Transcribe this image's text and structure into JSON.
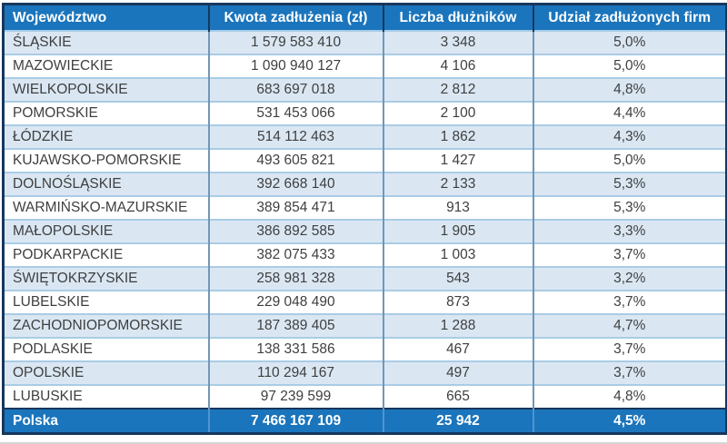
{
  "colors": {
    "header_bg": "#1B75BC",
    "header_text": "#FFFFFF",
    "footer_bg": "#1B75BC",
    "outer_border": "#17375D",
    "row_alt_bg": "#DAE7F3",
    "row_white_bg": "#FFFFFF",
    "grid_horizontal": "#A9CCE5",
    "grid_vertical": "#7396B5",
    "footer_divider": "#4E95D1",
    "body_text": "#3F3F3F"
  },
  "chart_data": {
    "type": "table",
    "columns": [
      "Województwo",
      "Kwota zadłużenia (zł)",
      "Liczba dłużników",
      "Udział zadłużonych firm"
    ],
    "rows": [
      [
        "ŚLĄSKIE",
        "1 579 583 410",
        "3 348",
        "5,0%"
      ],
      [
        "MAZOWIECKIE",
        "1 090 940 127",
        "4 106",
        "5,0%"
      ],
      [
        "WIELKOPOLSKIE",
        "683 697 018",
        "2 812",
        "4,8%"
      ],
      [
        "POMORSKIE",
        "531 453 066",
        "2 100",
        "4,4%"
      ],
      [
        "ŁÓDZKIE",
        "514 112 463",
        "1 862",
        "4,3%"
      ],
      [
        "KUJAWSKO-POMORSKIE",
        "493 605 821",
        "1 427",
        "5,0%"
      ],
      [
        "DOLNOŚLĄSKIE",
        "392 668 140",
        "2 133",
        "5,3%"
      ],
      [
        "WARMIŃSKO-MAZURSKIE",
        "389 854 471",
        "913",
        "5,3%"
      ],
      [
        "MAŁOPOLSKIE",
        "386 892 585",
        "1 905",
        "3,3%"
      ],
      [
        "PODKARPACKIE",
        "382 075 433",
        "1 003",
        "3,7%"
      ],
      [
        "ŚWIĘTOKRZYSKIE",
        "258 981 328",
        "543",
        "3,2%"
      ],
      [
        "LUBELSKIE",
        "229 048 490",
        "873",
        "3,7%"
      ],
      [
        "ZACHODNIOPOMORSKIE",
        "187 389 405",
        "1 288",
        "4,7%"
      ],
      [
        "PODLASKIE",
        "138 331 586",
        "467",
        "3,7%"
      ],
      [
        "OPOLSKIE",
        "110 294 167",
        "497",
        "3,7%"
      ],
      [
        "LUBUSKIE",
        "97 239 599",
        "665",
        "4,8%"
      ]
    ],
    "footer": [
      "Polska",
      "7 466 167 109",
      "25 942",
      "4,5%"
    ]
  }
}
